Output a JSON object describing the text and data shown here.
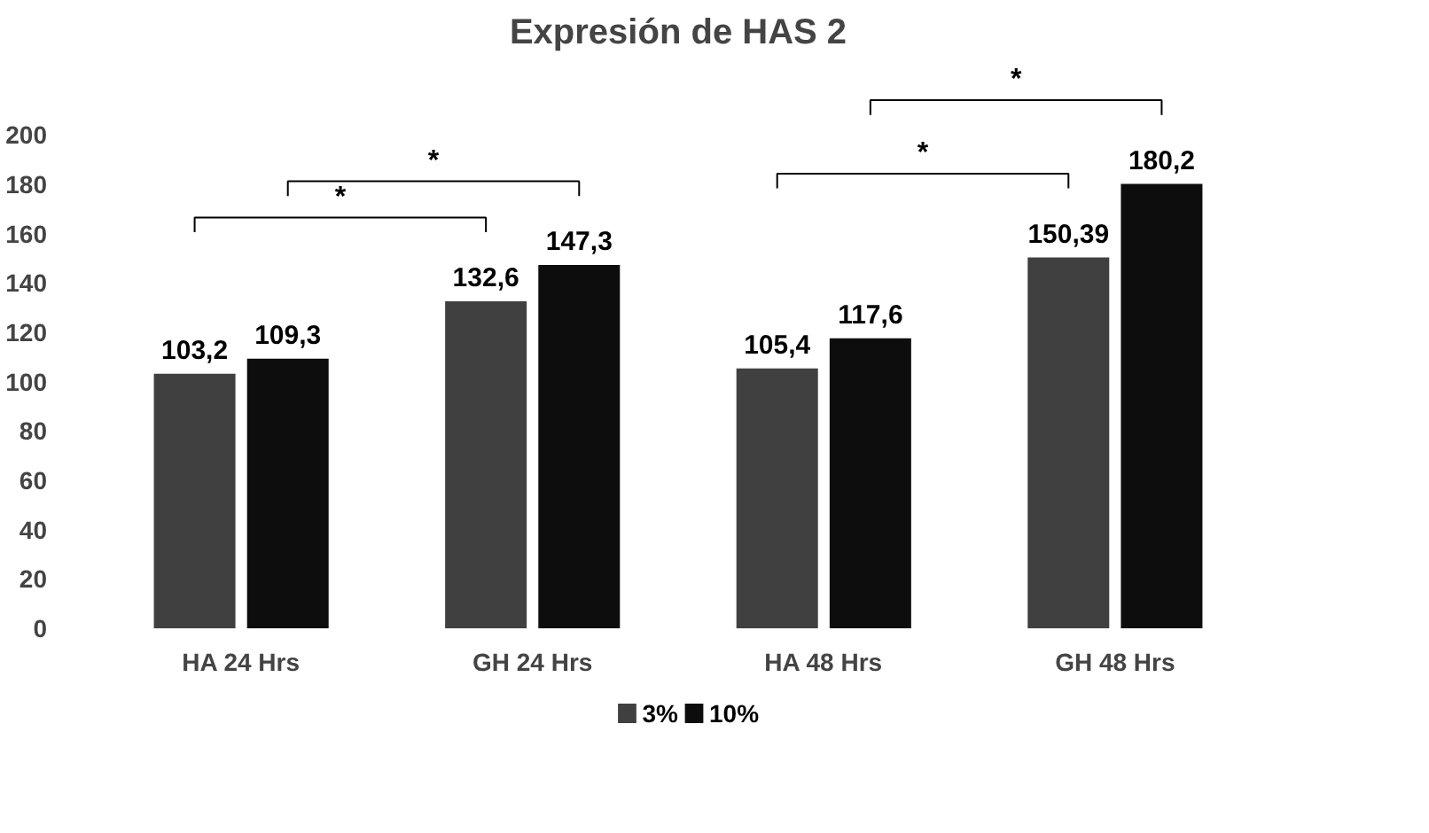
{
  "chart_data": {
    "type": "bar",
    "title": "Expresión de HAS 2",
    "categories": [
      "HA 24 Hrs",
      "GH 24 Hrs",
      "HA 48 Hrs",
      "GH 48 Hrs"
    ],
    "series": [
      {
        "name": "3%",
        "color": "#404040",
        "values": [
          103.2,
          132.6,
          105.4,
          150.39
        ],
        "value_labels": [
          "103,2",
          "132,6",
          "105,4",
          "150,39"
        ]
      },
      {
        "name": "10%",
        "color": "#0d0d0d",
        "values": [
          109.3,
          147.3,
          117.6,
          180.2
        ],
        "value_labels": [
          "109,3",
          "147,3",
          "117,6",
          "180,2"
        ]
      }
    ],
    "ylim": [
      0,
      200
    ],
    "yticks": [
      0,
      20,
      40,
      60,
      80,
      100,
      120,
      140,
      160,
      180,
      200
    ],
    "grid": false,
    "legend": "bottom",
    "annotations": [
      "*",
      "*",
      "*",
      "*"
    ]
  }
}
